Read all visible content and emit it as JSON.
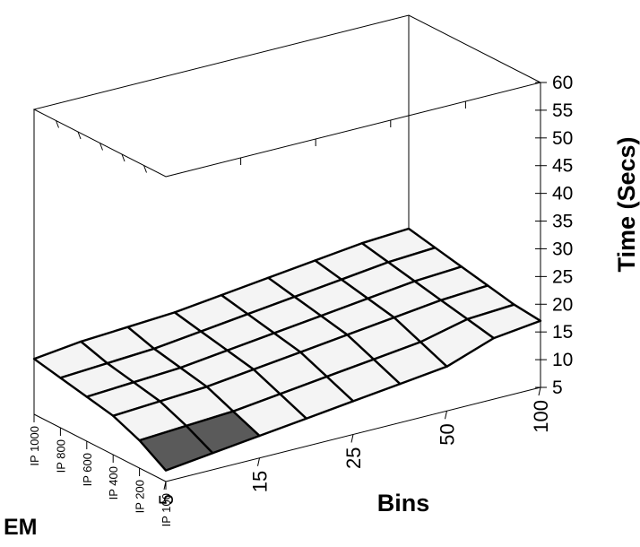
{
  "chart_data": {
    "type": "surface",
    "corner_label": "EM",
    "xlabel": "Bins",
    "ylabel": "",
    "zlabel": "Time (Secs)",
    "x_ticks": [
      "5",
      "15",
      "25",
      "50",
      "100"
    ],
    "y_ticks": [
      "IP 100",
      "IP 200",
      "IP 400",
      "IP 600",
      "IP 800",
      "IP 1000"
    ],
    "zlim": [
      5,
      60
    ],
    "z_ticks": [
      5,
      10,
      15,
      20,
      25,
      30,
      35,
      40,
      45,
      50,
      55,
      60
    ],
    "grid_x_count": 9,
    "grid_y_count": 6,
    "z_values": [
      [
        7,
        8,
        9,
        10,
        11,
        12,
        13,
        16,
        17
      ],
      [
        10,
        10.5,
        11,
        12,
        13,
        14,
        15,
        17,
        17.5
      ],
      [
        12,
        12.5,
        13,
        14,
        15,
        16,
        17,
        18,
        18.5
      ],
      [
        13,
        13.5,
        14,
        15,
        16,
        17,
        18,
        19,
        19.5
      ],
      [
        14,
        14.5,
        15,
        16,
        17,
        18,
        19,
        20,
        20.5
      ],
      [
        15,
        16,
        16.5,
        17,
        18,
        19,
        20,
        21,
        21.5
      ]
    ],
    "colors": {
      "surface_light": "#f4f4f4",
      "surface_dark": "#5a5a5a",
      "edge": "#000000"
    }
  }
}
